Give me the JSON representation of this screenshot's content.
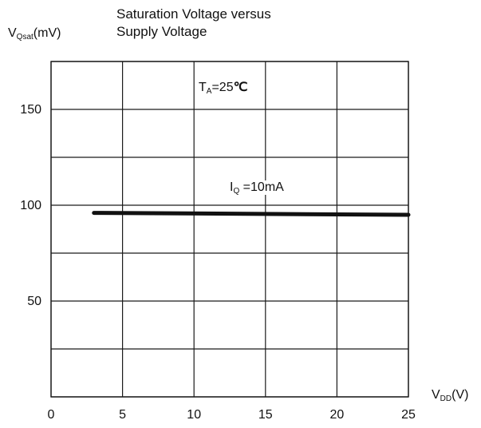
{
  "chart_data": {
    "type": "line",
    "title": [
      "Saturation Voltage versus",
      "Supply Voltage"
    ],
    "ylabel": {
      "main": "V",
      "sub": "Qsat",
      "unit": "(mV)"
    },
    "xlabel": {
      "main": "V",
      "sub": "DD",
      "unit": "(V)"
    },
    "xlim": [
      0,
      25
    ],
    "ylim": [
      0,
      175
    ],
    "xticks": [
      0,
      5,
      10,
      15,
      20,
      25
    ],
    "yticks": [
      50,
      100,
      150
    ],
    "grid": true,
    "series": [
      {
        "name": "I_Q =10mA",
        "x": [
          3,
          25
        ],
        "y": [
          96,
          95
        ]
      }
    ],
    "annotations": {
      "temperature": {
        "main": "T",
        "sub": "A",
        "rest": "=25",
        "unit": "℃"
      },
      "current": {
        "main": "I",
        "sub": "Q",
        "rest": " =10mA"
      }
    },
    "colors": {
      "line": "#111111",
      "grid": "#1a1a1a"
    }
  }
}
